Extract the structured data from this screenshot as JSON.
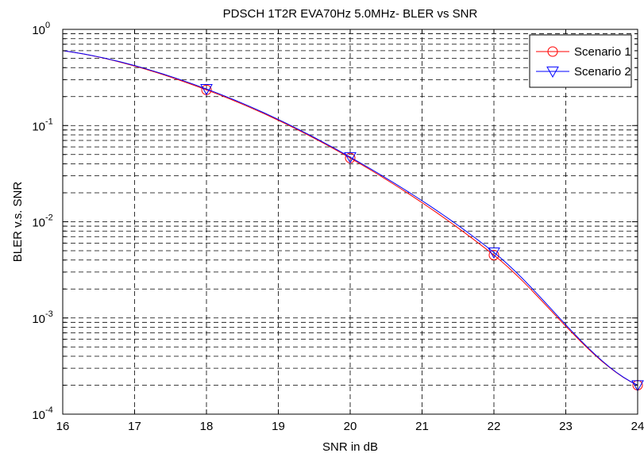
{
  "chart_data": {
    "type": "line",
    "title": "PDSCH 1T2R EVA70Hz 5.0MHz- BLER vs SNR",
    "xlabel": "SNR in dB",
    "ylabel": "BLER v.s. SNR",
    "xlim": [
      16,
      24
    ],
    "ylim": [
      0.0001,
      1
    ],
    "yscale": "log",
    "grid": true,
    "legend_position": "top-right",
    "x_ticks": [
      16,
      17,
      18,
      19,
      20,
      21,
      22,
      23,
      24
    ],
    "y_ticks": [
      {
        "base": "10",
        "exp": "0",
        "value": 1
      },
      {
        "base": "10",
        "exp": "-1",
        "value": 0.1
      },
      {
        "base": "10",
        "exp": "-2",
        "value": 0.01
      },
      {
        "base": "10",
        "exp": "-3",
        "value": 0.001
      },
      {
        "base": "10",
        "exp": "-4",
        "value": 0.0001
      }
    ],
    "x": [
      16,
      18,
      20,
      22,
      24
    ],
    "series": [
      {
        "name": "Scenario 1",
        "color": "#ff0000",
        "marker": "circle",
        "values": [
          0.6,
          0.235,
          0.046,
          0.0045,
          0.0002
        ]
      },
      {
        "name": "Scenario 2",
        "color": "#0000ff",
        "marker": "triangle-down",
        "values": [
          0.6,
          0.24,
          0.047,
          0.0048,
          0.0002
        ]
      }
    ]
  }
}
